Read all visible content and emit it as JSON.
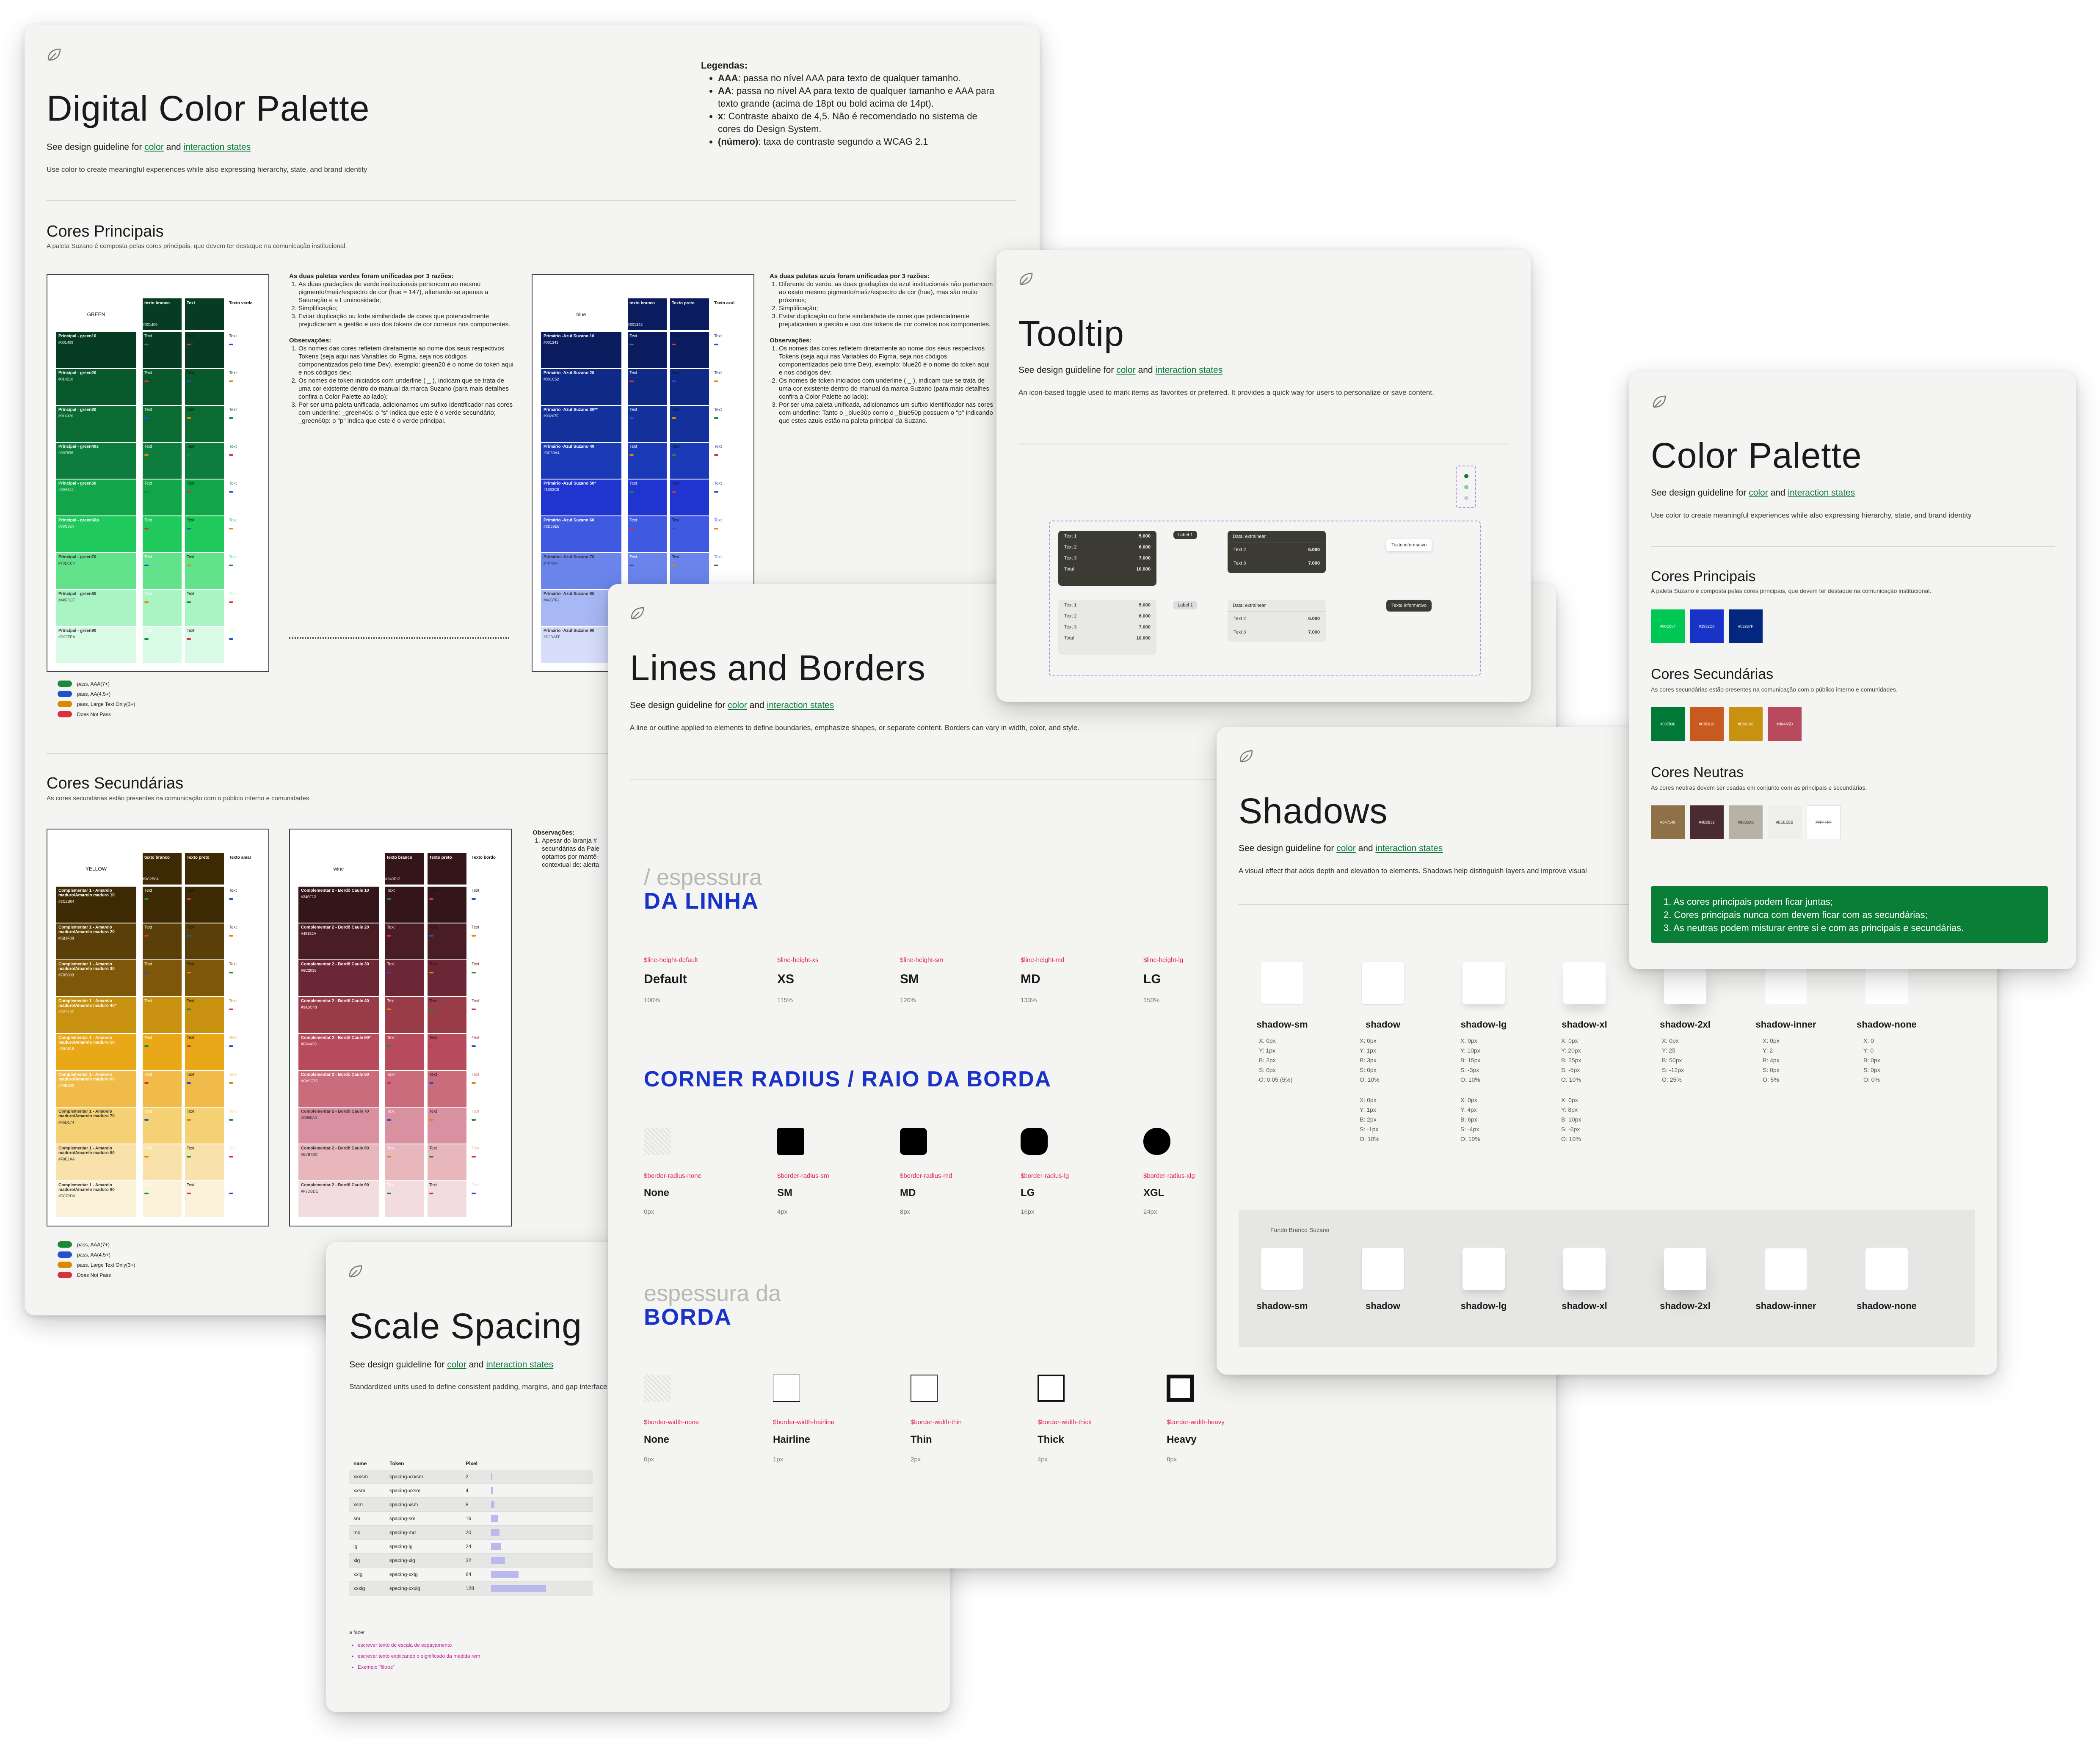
{
  "leaf_icon": "leaf-icon",
  "dcp": {
    "title": "Digital Color Palette",
    "guide_prefix": "See design guideline for",
    "guide_color": "color",
    "guide_and": "and",
    "guide_states": "interaction states",
    "desc": "Use color to create meaningful experiences while also expressing hierarchy, state, and brand identity",
    "legend_title": "Legendas:",
    "legend": [
      {
        "k": "AAA",
        "t": ": passa no nível AAA para texto de qualquer tamanho."
      },
      {
        "k": "AA",
        "t": ": passa no nível AA para texto de qualquer tamanho e AAA para texto grande (acima de 18pt ou bold acima de 14pt)."
      },
      {
        "k": "x",
        "t": ": Contraste abaixo de 4,5. Não é recomendado no sistema de cores do Design System."
      },
      {
        "k": "(número)",
        "t": ": taxa de contraste segundo a WCAG 2.1"
      }
    ],
    "principais_title": "Cores Principais",
    "principais_sub": "A paleta Suzano é composta pelas cores principais, que devem ter destaque na comunicação institucional.",
    "secundarias_title": "Cores Secundárias",
    "secundarias_sub": "As cores secundárias estão presentes na comunicação com o público interno e comunidades.",
    "green_label": "GREEN",
    "blue_label": "blue",
    "yellow_label": "YELLOW",
    "wine_label": "wine",
    "green_header": [
      "texto branco",
      "Text",
      "Texto verde"
    ],
    "blue_header": [
      "texto branco",
      "Texto preto",
      "Texto azul"
    ],
    "yellow_header": [
      "texto branco",
      "Texto preto",
      "Texto amar"
    ],
    "wine_header": [
      "texto branco",
      "Texto preto",
      "Texto bordo"
    ],
    "green_rows": [
      {
        "name": "Principal - green10",
        "hex": "#001409",
        "color": "#063d22"
      },
      {
        "name": "Principal - green20",
        "hex": "#014210",
        "color": "#07592c"
      },
      {
        "name": "Principal - green30",
        "hex": "#016320",
        "color": "#0a6b33"
      },
      {
        "name": "Principal - green40s",
        "hex": "#007836",
        "color": "#0c7d3d"
      },
      {
        "name": "Principal - green50",
        "hex": "#00A244",
        "color": "#11a64a"
      },
      {
        "name": "Principal - green60p",
        "hex": "#00C854",
        "color": "#1fc95c"
      },
      {
        "name": "Principal - green70",
        "hex": "#70ECC4",
        "color": "#63e28c"
      },
      {
        "name": "Principal - green80",
        "hex": "#A8F8CE",
        "color": "#a9f4c3"
      },
      {
        "name": "Principal - green90",
        "hex": "#D9FFEA",
        "color": "#d9fbe6"
      }
    ],
    "blue_rows": [
      {
        "name": "Primário -Azul Suzano 10",
        "hex": "#001343",
        "color": "#0a1c5e"
      },
      {
        "name": "Primário -Azul Suzano 20",
        "hex": "#001C62",
        "color": "#0e2a86"
      },
      {
        "name": "Primário -Azul Suzano 30**",
        "hex": "#03267F",
        "color": "#14309a"
      },
      {
        "name": "Primário -Azul Suzano 40",
        "hex": "#0C39A4",
        "color": "#1a3ab8"
      },
      {
        "name": "Primário -Azul Suzano 50*",
        "hex": "#1932C8",
        "color": "#2035d0"
      },
      {
        "name": "Primário -Azul Suzano 60",
        "hex": "#3D59E5",
        "color": "#3f5ae0"
      },
      {
        "name": "Primário -Azul Suzano 70",
        "hex": "#4F79F4",
        "color": "#6a84ec"
      },
      {
        "name": "Primário -Azul Suzano 80",
        "hex": "#A6B7F2",
        "color": "#a8b8f4"
      },
      {
        "name": "Primário -Azul Suzano 90",
        "hex": "#D2DAFF",
        "color": "#d6defc"
      }
    ],
    "yellow_rows": [
      {
        "name": "Complementar 1 - Amarelo maduro/Amarelo maduro 10",
        "hex": "#3C2B04",
        "color": "#3d2a04"
      },
      {
        "name": "Complementar 1 - Amarelo maduro/Amarelo maduro 20",
        "hex": "#5B3F08",
        "color": "#5b3f08"
      },
      {
        "name": "Complementar 1 - Amarelo maduro/Amarelo maduro 30",
        "hex": "#7B560B",
        "color": "#7e570b"
      },
      {
        "name": "Complementar 1 - Amarelo maduro/Amarelo maduro 40*",
        "hex": "#C8910F",
        "color": "#c8910f"
      },
      {
        "name": "Complementar 1 - Amarelo maduro/Amarelo maduro 50",
        "hex": "#E8A818",
        "color": "#e8a818"
      },
      {
        "name": "Complementar 1 - Amarelo maduro/Amarelo maduro 60",
        "hex": "#F0BB49",
        "color": "#f0bb49"
      },
      {
        "name": "Complementar 1 - Amarelo maduro/Amarelo maduro 70",
        "hex": "#F5D174",
        "color": "#f5d174"
      },
      {
        "name": "Complementar 1 - Amarelo maduro/Amarelo maduro 80",
        "hex": "#F9E1AA",
        "color": "#f9e1aa"
      },
      {
        "name": "Complementar 1 - Amarelo maduro/Amarelo maduro 90",
        "hex": "#FCF2D9",
        "color": "#fcf2d9"
      }
    ],
    "wine_rows": [
      {
        "name": "Complementar 2 - Bordô Caule 10",
        "hex": "#240F12",
        "color": "#33151a"
      },
      {
        "name": "Complementar 2 - Bordô Caule 20",
        "hex": "#48152A",
        "color": "#4a1c24"
      },
      {
        "name": "Complementar 2 - Bordô Caule 30",
        "hex": "#6C2036",
        "color": "#6c2736"
      },
      {
        "name": "Complementar 2 - Bordô Caule 40",
        "hex": "#9A3C48",
        "color": "#9a3c48"
      },
      {
        "name": "Complementar 2 - Bordô Caule 50*",
        "hex": "#B84A5D",
        "color": "#b84a5d"
      },
      {
        "name": "Complementar 2 - Bordô Caule 60",
        "hex": "#CA6C7C",
        "color": "#ca6c7c"
      },
      {
        "name": "Complementar 2 - Bordô Caule 70",
        "hex": "#D990A0",
        "color": "#d990a0"
      },
      {
        "name": "Complementar 2 - Bordô Caule 80",
        "hex": "#E7B7BC",
        "color": "#e7b7bc"
      },
      {
        "name": "Complementar 2 - Bordô Caule 90",
        "hex": "#F9DBDE",
        "color": "#f3dcdf"
      }
    ],
    "green_notes_title": "As duas paletas verdes foram unificadas por 3 razões:",
    "green_notes": [
      "As duas gradações de verde institucionais pertencem ao mesmo pigmento/matiz/espectro de cor (hue = 147), alterando-se apenas a Saturação e a Luminosidade;",
      "Simplificação;",
      "Evitar duplicação ou forte similaridade de cores que potencialmente prejudicariam a gestão e uso dos tokens de cor corretos nos componentes."
    ],
    "green_obs_title": "Observações:",
    "green_obs": [
      "Os nomes das cores refletem diretamente ao nome dos seus respectivos Tokens (seja aqui nas Variables do Figma, seja nos códigos componentizados pelo time Dev), exemplo: green20 é o nome do token aqui e nos códigos dev;",
      "Os nomes de token iniciados com underline ( _ ), indicam que se trata de uma cor existente dentro do manual da marca Suzano (para mais detalhes confira a Color Palette ao lado);",
      "Por ser uma paleta unificada, adicionamos um sufixo identificador nas cores com underline: _green40s: o \"s\" indica que este é o verde secundário; _green60p: o \"p\" indica que este é o verde principal."
    ],
    "blue_notes_title": "As duas paletas azuis foram unificadas por 3 razões:",
    "blue_notes": [
      "Diferente do verde, as duas gradações de azul institucionais não pertencem ao exato mesmo pigmento/matiz/espectro de cor (hue), mas são muito próximos;",
      "Simplificação;",
      "Evitar duplicação ou forte similaridade de cores que potencialmente prejudicariam a gestão e uso dos tokens de cor corretos nos componentes."
    ],
    "blue_obs_title": "Observações:",
    "blue_obs": [
      "Os nomes das cores refletem diretamente ao nome dos seus respectivos Tokens (seja aqui nas Variables do Figma, seja nos códigos componentizados pelo time Dev), exemplo: blue20 é o nome do token aqui e nos códigos dev;",
      "Os nomes de token iniciados com underline ( _ ), indicam que se trata de uma cor existente dentro do manual da marca Suzano (para mais detalhes confira a Color Palette ao lado);",
      "Por ser uma paleta unificada, adicionamos um sufixo identificador nas cores com underline: Tanto o _blue30p como o _blue50p possuem o \"p\" indicando que estes azuis estão na paleta principal da Suzano."
    ],
    "sec_obs_title": "Observações:",
    "sec_obs": "Apesar do laranja # secundárias da Pale optamos por mantê- contextual de: alerta",
    "pass_legend": [
      {
        "label": "pass, AAA(7+)",
        "color": "#1a8a3a"
      },
      {
        "label": "pass, AA(4.5+)",
        "color": "#2451c9"
      },
      {
        "label": "pass, Large Text Only(3+)",
        "color": "#d98a00"
      },
      {
        "label": "Does Not Pass",
        "color": "#d8323c"
      }
    ]
  },
  "tooltip": {
    "title": "Tooltip",
    "desc": "An icon-based toggle used to mark items as favorites or preferred. It provides a quick way for users to personalize or save content.",
    "rows": [
      "Text 1",
      "Text 2",
      "Text 3",
      "Total"
    ],
    "vals": [
      "5.000",
      "6.000",
      "7.000",
      "10.000"
    ],
    "label": "Label 1",
    "extract": "Data: extrainear",
    "info": "Texto informativo"
  },
  "color_palette": {
    "title": "Color Palette",
    "desc": "Use color to create meaningful experiences while also expressing hierarchy, state, and brand identity",
    "principais_title": "Cores Principais",
    "principais_sub": "A paleta Suzano é composta pelas cores principais, que devem ter destaque na comunicação institucional.",
    "principais": [
      {
        "hex": "#00C854",
        "color": "#00c854"
      },
      {
        "hex": "#1932C8",
        "color": "#1932c8"
      },
      {
        "hex": "#03267F",
        "color": "#03267f"
      }
    ],
    "secundarias_title": "Cores Secundárias",
    "secundarias_sub": "As cores secundárias estão presentes na comunicação com o público interno e comunidades.",
    "secundarias": [
      {
        "hex": "#007836",
        "color": "#007836"
      },
      {
        "hex": "#C8591F",
        "color": "#c8591f"
      },
      {
        "hex": "#C8910F",
        "color": "#c8910f"
      },
      {
        "hex": "#B84A5D",
        "color": "#b84a5d"
      }
    ],
    "neutras_title": "Cores Neutras",
    "neutras_sub": "As cores neutras devem ser usadas em conjunto com as principais e secundárias.",
    "neutras": [
      {
        "hex": "#8F7148",
        "color": "#8f7148"
      },
      {
        "hex": "#4B2B32",
        "color": "#4b2b32"
      },
      {
        "hex": "#B6B2A6",
        "color": "#b6b2a6"
      },
      {
        "hex": "#EEEEEB",
        "color": "#eeeeeb"
      },
      {
        "hex": "#FFFFFF",
        "color": "#ffffff"
      }
    ],
    "rules": [
      "1. As cores principais podem ficar juntas;",
      "2. Cores principais nunca com devem ficar com as secundárias;",
      "3. As neutras podem misturar entre si e com as principais e secundárias."
    ]
  },
  "lines": {
    "title": "Lines and Borders",
    "desc": "A line or outline applied to elements to define boundaries, emphasize shapes, or separate content. Borders can vary in width, color, and style.",
    "espessura_line1": "/ espessura",
    "espessura_line2": "DA LINHA",
    "line_heights": [
      {
        "tok": "$line-height-default",
        "name": "Default",
        "val": "100%"
      },
      {
        "tok": "$line-height-xs",
        "name": "XS",
        "val": "115%"
      },
      {
        "tok": "$line-height-sm",
        "name": "SM",
        "val": "120%"
      },
      {
        "tok": "$line-height-md",
        "name": "MD",
        "val": "133%"
      },
      {
        "tok": "$line-height-lg",
        "name": "LG",
        "val": "150%"
      }
    ],
    "radius_title": "CORNER RADIUS / RAIO DA BORDA",
    "radii": [
      {
        "tok": "$border-radius-none",
        "name": "None",
        "val": "0px"
      },
      {
        "tok": "$border-radius-sm",
        "name": "SM",
        "val": "4px"
      },
      {
        "tok": "$border-radius-md",
        "name": "MD",
        "val": "8px"
      },
      {
        "tok": "$border-radius-lg",
        "name": "LG",
        "val": "16px"
      },
      {
        "tok": "$border-radius-xlg",
        "name": "XGL",
        "val": "24px"
      }
    ],
    "borda_line1": "espessura da",
    "borda_line2": "BORDA",
    "widths": [
      {
        "tok": "$border-width-none",
        "name": "None",
        "val": "0px"
      },
      {
        "tok": "$border-width-hairline",
        "name": "Hairline",
        "val": "1px"
      },
      {
        "tok": "$border-width-thin",
        "name": "Thin",
        "val": "2px"
      },
      {
        "tok": "$border-width-thick",
        "name": "Thick",
        "val": "4px"
      },
      {
        "tok": "$border-width-heavy",
        "name": "Heavy",
        "val": "8px"
      }
    ]
  },
  "shadows": {
    "title": "Shadows",
    "desc": "A visual effect that adds depth and elevation to elements. Shadows help distinguish layers and improve visual",
    "items": [
      {
        "name": "shadow-sm",
        "vals": [
          "X: 0px",
          "Y: 1px",
          "B: 2px",
          "S: 0px",
          "O: 0.05 (5%)"
        ],
        "vals2": []
      },
      {
        "name": "shadow",
        "vals": [
          "X: 0px",
          "Y: 1px",
          "B: 3px",
          "S: 0px",
          "O: 10%"
        ],
        "vals2": [
          "X: 0px",
          "Y: 1px",
          "B: 2px",
          "S: -1px",
          "O: 10%"
        ]
      },
      {
        "name": "shadow-lg",
        "vals": [
          "X: 0px",
          "Y: 10px",
          "B: 15px",
          "S: -3px",
          "O: 10%"
        ],
        "vals2": [
          "X: 0px",
          "Y: 4px",
          "B: 6px",
          "S: -4px",
          "O: 10%"
        ]
      },
      {
        "name": "shadow-xl",
        "vals": [
          "X: 0px",
          "Y: 20px",
          "B: 25px",
          "S: -5px",
          "O: 10%"
        ],
        "vals2": [
          "X: 0px",
          "Y: 8px",
          "B: 10px",
          "S: -6px",
          "O: 10%"
        ]
      },
      {
        "name": "shadow-2xl",
        "vals": [
          "X: 0px",
          "Y: 25",
          "B: 50px",
          "S: -12px",
          "O: 25%"
        ],
        "vals2": []
      },
      {
        "name": "shadow-inner",
        "vals": [
          "X: 0px",
          "Y: 2",
          "B: 4px",
          "S: 0px",
          "O: 5%"
        ],
        "vals2": []
      },
      {
        "name": "shadow-none",
        "vals": [
          "X: 0",
          "Y: 0",
          "B: 0px",
          "S: 0px",
          "O: 0%"
        ],
        "vals2": []
      }
    ],
    "fundo_label": "Fundo Branco Suzano"
  },
  "scale": {
    "title": "Scale Spacing",
    "desc": "Standardized units used to define consistent padding, margins, and gap interface.",
    "headers": [
      "name",
      "Token",
      "Pixel"
    ],
    "rows": [
      {
        "name": "xxxsm",
        "token": "spacing-xxxsm",
        "px": "2",
        "v": 2
      },
      {
        "name": "xxsm",
        "token": "spacing-xxsm",
        "px": "4",
        "v": 4
      },
      {
        "name": "xsm",
        "token": "spacing-xsm",
        "px": "8",
        "v": 8
      },
      {
        "name": "sm",
        "token": "spacing-sm",
        "px": "16",
        "v": 16
      },
      {
        "name": "md",
        "token": "spacing-md",
        "px": "20",
        "v": 20
      },
      {
        "name": "lg",
        "token": "spacing-lg",
        "px": "24",
        "v": 24
      },
      {
        "name": "xlg",
        "token": "spacing-xlg",
        "px": "32",
        "v": 32
      },
      {
        "name": "xxlg",
        "token": "spacing-xxlg",
        "px": "64",
        "v": 64
      },
      {
        "name": "xxxlg",
        "token": "spacing-xxxlg",
        "px": "128",
        "v": 128
      }
    ],
    "todo_title": "a fazer",
    "todo": [
      "escrever texto de escala de espaçamento",
      "escrever texto explicando o significado da medida rem",
      "Exemplo \"filtros\""
    ]
  }
}
